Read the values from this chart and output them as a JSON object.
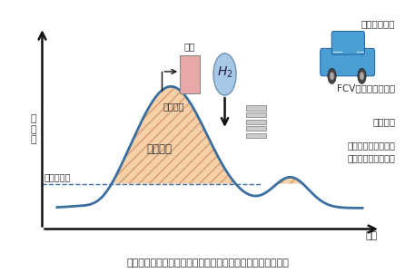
{
  "title": "再生可能エネルギーの水素による出力変動対応のイメージ図",
  "y_axis_label": "発\n電\n量",
  "xlabel": "時間",
  "necessary_power_label": "必要電力量",
  "surplus_power_label": "余剰電力",
  "storage_label": "貯蔵",
  "electrolysis_label": "電解装置",
  "other_uses_label": "その他の用途",
  "fcv_label": "FCV燃料として利用",
  "fuel_cell_label": "燃料電池",
  "fuel_cell_desc": "燃料電池で発電し、\n再度電気として利用",
  "background_color": "#ffffff",
  "curve_color": "#3a6fa0",
  "fill_color": "#f5cba0",
  "hatch_color": "#d4956a",
  "necessary_line_color": "#3a6fa0",
  "storage_box_facecolor": "#e8a8a8",
  "storage_box_edgecolor": "#888888",
  "h2_circle_facecolor": "#a8c8e8",
  "h2_circle_edgecolor": "#7090b0",
  "axis_color": "#111111",
  "text_color": "#333333",
  "fuel_cell_stack_color": "#999999",
  "car_body_color": "#4a9ed4",
  "car_edge_color": "#2060a0"
}
